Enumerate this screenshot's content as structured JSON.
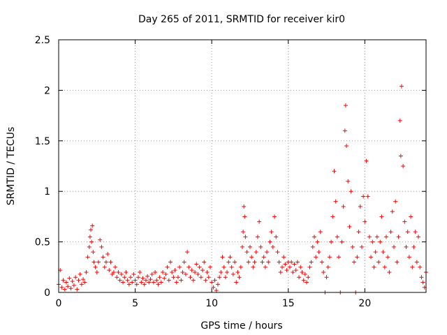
{
  "chart_data": {
    "type": "scatter",
    "title": "Day 265 of 2011, SRMTID for receiver kir0",
    "xlabel": "GPS time / hours",
    "ylabel": "SRMTID / TECUs",
    "xlim": [
      0,
      24
    ],
    "ylim": [
      0,
      2.5
    ],
    "x_ticks": [
      0,
      5,
      10,
      15,
      20
    ],
    "x_tick_labels": [
      "0",
      "5",
      "10",
      "15",
      "20"
    ],
    "y_ticks": [
      0,
      0.5,
      1,
      1.5,
      2,
      2.5
    ],
    "y_tick_labels": [
      "0",
      "0.5",
      "1",
      "1.5",
      "2",
      "2.5"
    ],
    "grid": true,
    "marker": "plus",
    "series": [
      {
        "name": "SRMTID",
        "color": "#ff0000",
        "points": [
          [
            0.0,
            0.08
          ],
          [
            0.1,
            0.22
          ],
          [
            0.2,
            0.05
          ],
          [
            0.3,
            0.12
          ],
          [
            0.4,
            0.03
          ],
          [
            0.5,
            0.1
          ],
          [
            0.6,
            0.06
          ],
          [
            0.7,
            0.14
          ],
          [
            0.8,
            0.04
          ],
          [
            0.9,
            0.11
          ],
          [
            1.0,
            0.07
          ],
          [
            1.1,
            0.15
          ],
          [
            1.2,
            0.03
          ],
          [
            1.3,
            0.12
          ],
          [
            1.4,
            0.18
          ],
          [
            1.5,
            0.08
          ],
          [
            1.6,
            0.13
          ],
          [
            1.7,
            0.1
          ],
          [
            1.8,
            0.2
          ],
          [
            1.9,
            0.35
          ],
          [
            2.0,
            0.45
          ],
          [
            2.05,
            0.55
          ],
          [
            2.1,
            0.62
          ],
          [
            2.15,
            0.5
          ],
          [
            2.2,
            0.66
          ],
          [
            2.25,
            0.4
          ],
          [
            2.3,
            0.3
          ],
          [
            2.4,
            0.25
          ],
          [
            2.5,
            0.2
          ],
          [
            2.6,
            0.3
          ],
          [
            2.7,
            0.52
          ],
          [
            2.8,
            0.45
          ],
          [
            2.9,
            0.35
          ],
          [
            3.0,
            0.25
          ],
          [
            3.1,
            0.3
          ],
          [
            3.2,
            0.38
          ],
          [
            3.3,
            0.22
          ],
          [
            3.4,
            0.3
          ],
          [
            3.5,
            0.18
          ],
          [
            3.6,
            0.2
          ],
          [
            3.7,
            0.25
          ],
          [
            3.8,
            0.15
          ],
          [
            3.9,
            0.2
          ],
          [
            4.0,
            0.12
          ],
          [
            4.1,
            0.18
          ],
          [
            4.2,
            0.1
          ],
          [
            4.3,
            0.15
          ],
          [
            4.4,
            0.2
          ],
          [
            4.5,
            0.12
          ],
          [
            4.6,
            0.08
          ],
          [
            4.7,
            0.15
          ],
          [
            4.8,
            0.1
          ],
          [
            4.9,
            0.18
          ],
          [
            5.0,
            0.12
          ],
          [
            5.1,
            0.08
          ],
          [
            5.2,
            0.15
          ],
          [
            5.3,
            0.2
          ],
          [
            5.4,
            0.1
          ],
          [
            5.5,
            0.14
          ],
          [
            5.6,
            0.08
          ],
          [
            5.7,
            0.12
          ],
          [
            5.8,
            0.16
          ],
          [
            5.9,
            0.1
          ],
          [
            6.0,
            0.13
          ],
          [
            6.1,
            0.18
          ],
          [
            6.2,
            0.1
          ],
          [
            6.3,
            0.2
          ],
          [
            6.4,
            0.12
          ],
          [
            6.5,
            0.08
          ],
          [
            6.6,
            0.15
          ],
          [
            6.7,
            0.1
          ],
          [
            6.8,
            0.2
          ],
          [
            6.9,
            0.14
          ],
          [
            7.0,
            0.18
          ],
          [
            7.1,
            0.25
          ],
          [
            7.2,
            0.12
          ],
          [
            7.3,
            0.3
          ],
          [
            7.4,
            0.2
          ],
          [
            7.5,
            0.15
          ],
          [
            7.6,
            0.22
          ],
          [
            7.7,
            0.1
          ],
          [
            7.8,
            0.15
          ],
          [
            7.9,
            0.25
          ],
          [
            8.0,
            0.12
          ],
          [
            8.1,
            0.2
          ],
          [
            8.2,
            0.3
          ],
          [
            8.3,
            0.18
          ],
          [
            8.4,
            0.4
          ],
          [
            8.5,
            0.25
          ],
          [
            8.6,
            0.15
          ],
          [
            8.7,
            0.22
          ],
          [
            8.8,
            0.12
          ],
          [
            8.9,
            0.2
          ],
          [
            9.0,
            0.28
          ],
          [
            9.1,
            0.18
          ],
          [
            9.2,
            0.25
          ],
          [
            9.3,
            0.15
          ],
          [
            9.4,
            0.22
          ],
          [
            9.5,
            0.3
          ],
          [
            9.6,
            0.12
          ],
          [
            9.7,
            0.2
          ],
          [
            9.8,
            0.15
          ],
          [
            9.9,
            0.25
          ],
          [
            10.0,
            0.1
          ],
          [
            10.1,
            0.05
          ],
          [
            10.2,
            0.12
          ],
          [
            10.3,
            0.02
          ],
          [
            10.4,
            0.08
          ],
          [
            10.5,
            0.15
          ],
          [
            10.6,
            0.2
          ],
          [
            10.7,
            0.35
          ],
          [
            10.8,
            0.25
          ],
          [
            10.9,
            0.15
          ],
          [
            11.0,
            0.2
          ],
          [
            11.1,
            0.3
          ],
          [
            11.2,
            0.35
          ],
          [
            11.3,
            0.25
          ],
          [
            11.4,
            0.18
          ],
          [
            11.5,
            0.3
          ],
          [
            11.6,
            0.1
          ],
          [
            11.7,
            0.2
          ],
          [
            11.8,
            0.15
          ],
          [
            11.9,
            0.25
          ],
          [
            12.0,
            0.45
          ],
          [
            12.05,
            0.6
          ],
          [
            12.1,
            0.85
          ],
          [
            12.15,
            0.75
          ],
          [
            12.2,
            0.55
          ],
          [
            12.3,
            0.4
          ],
          [
            12.4,
            0.3
          ],
          [
            12.5,
            0.45
          ],
          [
            12.6,
            0.35
          ],
          [
            12.7,
            0.25
          ],
          [
            12.8,
            0.3
          ],
          [
            12.9,
            0.4
          ],
          [
            13.0,
            0.55
          ],
          [
            13.1,
            0.7
          ],
          [
            13.2,
            0.45
          ],
          [
            13.3,
            0.3
          ],
          [
            13.4,
            0.35
          ],
          [
            13.5,
            0.25
          ],
          [
            13.6,
            0.4
          ],
          [
            13.7,
            0.3
          ],
          [
            13.8,
            0.5
          ],
          [
            13.9,
            0.6
          ],
          [
            14.0,
            0.45
          ],
          [
            14.1,
            0.75
          ],
          [
            14.2,
            0.55
          ],
          [
            14.3,
            0.4
          ],
          [
            14.4,
            0.3
          ],
          [
            14.5,
            0.2
          ],
          [
            14.6,
            0.25
          ],
          [
            14.7,
            0.35
          ],
          [
            14.8,
            0.28
          ],
          [
            14.9,
            0.22
          ],
          [
            15.0,
            0.3
          ],
          [
            15.1,
            0.25
          ],
          [
            15.2,
            0.3
          ],
          [
            15.3,
            0.2
          ],
          [
            15.4,
            0.28
          ],
          [
            15.5,
            0.22
          ],
          [
            15.6,
            0.3
          ],
          [
            15.7,
            0.15
          ],
          [
            15.8,
            0.25
          ],
          [
            15.9,
            0.2
          ],
          [
            16.0,
            0.12
          ],
          [
            16.1,
            0.18
          ],
          [
            16.2,
            0.1
          ],
          [
            16.3,
            0.15
          ],
          [
            16.4,
            0.25
          ],
          [
            16.5,
            0.3
          ],
          [
            16.6,
            0.45
          ],
          [
            16.7,
            0.55
          ],
          [
            16.8,
            0.35
          ],
          [
            16.9,
            0.5
          ],
          [
            17.0,
            0.4
          ],
          [
            17.1,
            0.6
          ],
          [
            17.2,
            0.3
          ],
          [
            17.3,
            0.2
          ],
          [
            17.4,
            0.0
          ],
          [
            17.5,
            0.15
          ],
          [
            17.6,
            0.25
          ],
          [
            17.7,
            0.35
          ],
          [
            17.8,
            0.5
          ],
          [
            17.9,
            0.75
          ],
          [
            18.0,
            1.2
          ],
          [
            18.1,
            0.9
          ],
          [
            18.2,
            0.55
          ],
          [
            18.3,
            0.35
          ],
          [
            18.4,
            0.0
          ],
          [
            18.5,
            0.5
          ],
          [
            18.6,
            0.85
          ],
          [
            18.7,
            1.6
          ],
          [
            18.75,
            1.85
          ],
          [
            18.8,
            1.45
          ],
          [
            18.9,
            1.1
          ],
          [
            19.0,
            0.65
          ],
          [
            19.1,
            1.0
          ],
          [
            19.2,
            0.45
          ],
          [
            19.3,
            0.3
          ],
          [
            19.4,
            0.0
          ],
          [
            19.5,
            0.35
          ],
          [
            19.6,
            0.6
          ],
          [
            19.7,
            0.85
          ],
          [
            19.8,
            0.45
          ],
          [
            19.9,
            0.95
          ],
          [
            20.0,
            0.7
          ],
          [
            20.1,
            1.3
          ],
          [
            20.2,
            0.95
          ],
          [
            20.3,
            0.55
          ],
          [
            20.4,
            0.35
          ],
          [
            20.5,
            0.5
          ],
          [
            20.6,
            0.25
          ],
          [
            20.7,
            0.4
          ],
          [
            20.8,
            0.55
          ],
          [
            20.9,
            0.3
          ],
          [
            21.0,
            0.5
          ],
          [
            21.1,
            0.75
          ],
          [
            21.2,
            0.4
          ],
          [
            21.3,
            0.25
          ],
          [
            21.4,
            0.55
          ],
          [
            21.5,
            0.35
          ],
          [
            21.6,
            0.2
          ],
          [
            21.7,
            0.6
          ],
          [
            21.8,
            0.8
          ],
          [
            21.9,
            0.45
          ],
          [
            22.0,
            0.9
          ],
          [
            22.1,
            0.3
          ],
          [
            22.2,
            0.55
          ],
          [
            22.3,
            1.7
          ],
          [
            22.35,
            1.35
          ],
          [
            22.4,
            2.04
          ],
          [
            22.5,
            1.25
          ],
          [
            22.6,
            0.7
          ],
          [
            22.7,
            0.45
          ],
          [
            22.8,
            0.6
          ],
          [
            22.9,
            0.35
          ],
          [
            23.0,
            0.75
          ],
          [
            23.1,
            0.25
          ],
          [
            23.2,
            0.45
          ],
          [
            23.3,
            0.6
          ],
          [
            23.4,
            0.3
          ],
          [
            23.5,
            0.55
          ],
          [
            23.6,
            0.25
          ],
          [
            23.7,
            0.15
          ],
          [
            23.8,
            0.1
          ],
          [
            23.9,
            0.05
          ],
          [
            24.0,
            0.2
          ]
        ]
      }
    ]
  }
}
